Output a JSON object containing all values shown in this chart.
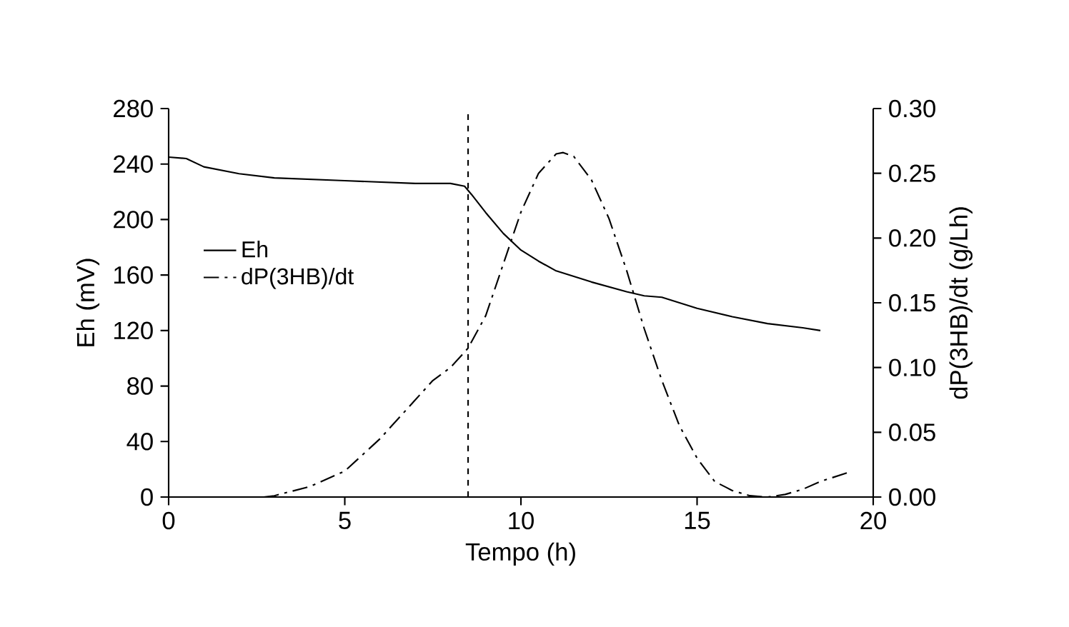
{
  "chart_data": {
    "type": "line",
    "xlabel": "Tempo (h)",
    "ylabel": "Eh (mV)",
    "y2label": "dP(3HB)/dt (g/Lh)",
    "xlim": [
      0,
      20
    ],
    "xticks": [
      0,
      5,
      10,
      15,
      20
    ],
    "ylim": [
      0,
      280
    ],
    "yticks": [
      0,
      40,
      80,
      120,
      160,
      200,
      240,
      280
    ],
    "y2lim": [
      0,
      0.3
    ],
    "y2ticks": [
      {
        "value": 0,
        "label": "0.00"
      },
      {
        "value": 0.05,
        "label": "0.05"
      },
      {
        "value": 0.1,
        "label": "0.10"
      },
      {
        "value": 0.15,
        "label": "0.15"
      },
      {
        "value": 0.2,
        "label": "0.20"
      },
      {
        "value": 0.25,
        "label": "0.25"
      },
      {
        "value": 0.3,
        "label": "0.30"
      }
    ],
    "legend": "left",
    "grid": false,
    "ref_lines": [
      {
        "axis": "x",
        "value": 8.5,
        "line_style": "dashed",
        "color": "#000000"
      }
    ],
    "series": [
      {
        "name": "Eh",
        "color": "#000000",
        "line_style": "solid",
        "x": [
          0,
          0.5,
          1,
          2,
          3,
          5,
          7,
          8,
          8.4,
          8.6,
          9,
          9.5,
          10,
          10.5,
          11,
          12,
          13,
          13.5,
          14,
          15,
          16,
          17,
          18,
          18.5
        ],
        "values": [
          245,
          244,
          238,
          233,
          230,
          228,
          226,
          226,
          224,
          218,
          205,
          190,
          178,
          170,
          163,
          155,
          148,
          145,
          144,
          136,
          130,
          125,
          122,
          120
        ]
      },
      {
        "name": "dP(3HB)/dt",
        "color": "#000000",
        "line_style": "dashdot",
        "axis": "y2",
        "x": [
          2.7,
          3,
          4,
          5,
          6,
          7,
          7.5,
          8,
          8.5,
          9,
          9.5,
          10,
          10.5,
          11,
          11.2,
          11.5,
          12,
          12.5,
          13,
          13.5,
          14,
          14.5,
          15,
          15.5,
          16,
          16.5,
          17,
          17.5,
          18,
          18.5,
          19.3
        ],
        "values": [
          0,
          0.001,
          0.008,
          0.02,
          0.045,
          0.075,
          0.09,
          0.1,
          0.115,
          0.14,
          0.18,
          0.22,
          0.25,
          0.265,
          0.266,
          0.263,
          0.245,
          0.215,
          0.175,
          0.13,
          0.09,
          0.055,
          0.03,
          0.012,
          0.005,
          0.001,
          0,
          0.002,
          0.006,
          0.012,
          0.019
        ]
      }
    ]
  }
}
